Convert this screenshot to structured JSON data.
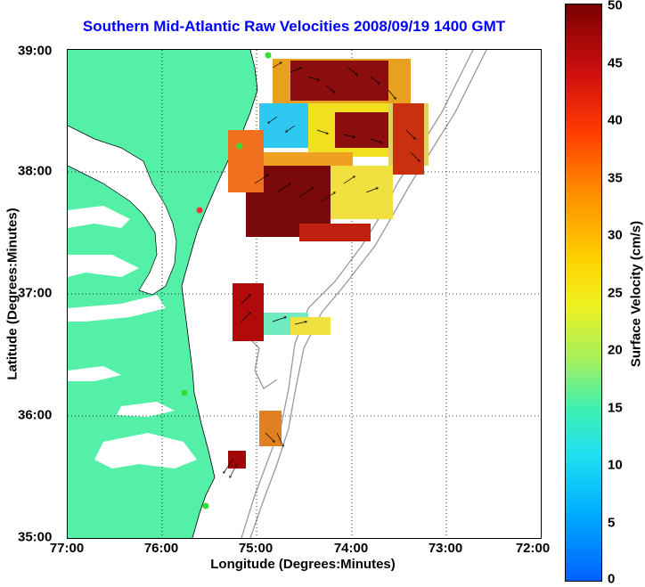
{
  "title": "Southern Mid-Atlantic Raw Velocities 2008/09/19 1400 GMT",
  "x_axis": {
    "title": "Longitude (Degrees:Minutes)",
    "ticks": [
      "77:00",
      "76:00",
      "75:00",
      "74:00",
      "73:00",
      "72:00"
    ]
  },
  "y_axis": {
    "title": "Latitude (Degrees:Minutes)",
    "ticks": [
      "39:00",
      "38:00",
      "37:00",
      "36:00",
      "35:00"
    ]
  },
  "colorbar": {
    "title": "Surface Velocity (cm/s)",
    "ticks": [
      "50",
      "45",
      "40",
      "35",
      "30",
      "25",
      "20",
      "15",
      "10",
      "5",
      "0"
    ]
  },
  "colors": {
    "land": "#55f0a8",
    "title": "#0000ff",
    "bathymetry": "#9a9a9a",
    "station": "#33dd33",
    "station_alt": "#ff3333"
  }
}
